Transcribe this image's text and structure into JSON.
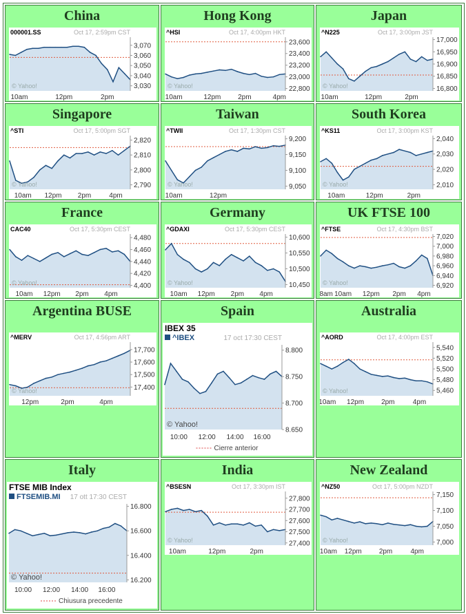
{
  "cells": [
    {
      "title": "China",
      "chart": {
        "symbol": "000001.SS",
        "stamp": "Oct 17, 2:59pm CST",
        "watermark": "© Yahoo!",
        "ylim": [
          3025,
          3078
        ],
        "yticks": [
          "3,070",
          "3,060",
          "3,050",
          "3,040",
          "3,030"
        ],
        "ytickvals": [
          3070,
          3060,
          3050,
          3040,
          3030
        ],
        "xticks": [
          "10am",
          "12pm",
          "2pm"
        ],
        "xtickpos": [
          0.08,
          0.45,
          0.81
        ],
        "prev_close": 3058,
        "series": [
          3061,
          3060,
          3063,
          3066,
          3067,
          3067,
          3068,
          3068,
          3068,
          3068,
          3068,
          3069,
          3069,
          3068,
          3063,
          3060,
          3052,
          3046,
          3034,
          3048,
          3042,
          3036
        ]
      }
    },
    {
      "title": "Hong Kong",
      "chart": {
        "symbol": "^HSI",
        "stamp": "Oct 17, 4:00pm HKT",
        "watermark": "© Yahoo!",
        "ylim": [
          22760,
          23680
        ],
        "yticks": [
          "23,600",
          "23,400",
          "23,200",
          "23,000",
          "22,800"
        ],
        "ytickvals": [
          23600,
          23400,
          23200,
          23000,
          22800
        ],
        "xticks": [
          "10am",
          "12pm",
          "2pm",
          "4pm"
        ],
        "xtickpos": [
          0.07,
          0.39,
          0.66,
          0.95
        ],
        "prev_close": 23600,
        "series": [
          23050,
          23000,
          22970,
          22990,
          23030,
          23050,
          23060,
          23080,
          23100,
          23120,
          23110,
          23130,
          23090,
          23060,
          23040,
          23060,
          23010,
          22990,
          23000,
          23040,
          23050
        ]
      }
    },
    {
      "title": "Japan",
      "chart": {
        "symbol": "^N225",
        "stamp": "Oct 17, 3:00pm JST",
        "watermark": "© Yahoo!",
        "ylim": [
          16790,
          17010
        ],
        "yticks": [
          "17,000",
          "16,950",
          "16,900",
          "16,850",
          "16,800"
        ],
        "ytickvals": [
          17000,
          16950,
          16900,
          16850,
          16800
        ],
        "xticks": [
          "10am",
          "12pm",
          "2pm"
        ],
        "xtickpos": [
          0.08,
          0.47,
          0.81
        ],
        "prev_close": 16855,
        "series": [
          16930,
          16950,
          16925,
          16900,
          16880,
          16840,
          16830,
          16850,
          16870,
          16885,
          16890,
          16900,
          16910,
          16925,
          16940,
          16950,
          16920,
          16910,
          16930,
          16915,
          16920
        ]
      }
    },
    {
      "title": "Singapore",
      "chart": {
        "symbol": "^STI",
        "stamp": "Oct 17, 5:00pm SGT",
        "watermark": "© Yahoo!",
        "ylim": [
          2787,
          2823
        ],
        "yticks": [
          "2,820",
          "2,810",
          "2,800",
          "2,790"
        ],
        "ytickvals": [
          2820,
          2810,
          2800,
          2790
        ],
        "xticks": [
          "10am",
          "12pm",
          "2pm",
          "4pm"
        ],
        "xtickpos": [
          0.11,
          0.36,
          0.62,
          0.88
        ],
        "prev_close": 2815,
        "series": [
          2806,
          2793,
          2791,
          2792,
          2795,
          2800,
          2803,
          2801,
          2806,
          2810,
          2808,
          2811,
          2811,
          2812,
          2810,
          2812,
          2811,
          2813,
          2810,
          2813,
          2816
        ]
      }
    },
    {
      "title": "Taiwan",
      "chart": {
        "symbol": "^TWII",
        "stamp": "Oct 17, 1:30pm CST",
        "watermark": "© Yahoo!",
        "ylim": [
          9040,
          9210
        ],
        "yticks": [
          "9,200",
          "9,150",
          "9,100",
          "9,050"
        ],
        "ytickvals": [
          9200,
          9150,
          9100,
          9050
        ],
        "xticks": [
          "10am",
          "12pm"
        ],
        "xtickpos": [
          0.07,
          0.44
        ],
        "prev_close": 9175,
        "series": [
          9130,
          9100,
          9070,
          9060,
          9080,
          9100,
          9110,
          9130,
          9140,
          9150,
          9160,
          9165,
          9160,
          9170,
          9168,
          9175,
          9170,
          9172,
          9178,
          9176,
          9180
        ]
      }
    },
    {
      "title": "South Korea",
      "chart": {
        "symbol": "^KS11",
        "stamp": "Oct 17, 3:00pm KST",
        "watermark": "© Yahoo!",
        "ylim": [
          2007,
          2042
        ],
        "yticks": [
          "2,040",
          "2,030",
          "2,020",
          "2,010"
        ],
        "ytickvals": [
          2040,
          2030,
          2020,
          2010
        ],
        "xticks": [
          "10am",
          "12pm",
          "2pm"
        ],
        "xtickpos": [
          0.14,
          0.48,
          0.83
        ],
        "prev_close": 2022,
        "series": [
          2025,
          2027,
          2024,
          2018,
          2013,
          2015,
          2020,
          2022,
          2024,
          2026,
          2027,
          2029,
          2030,
          2031,
          2033,
          2032,
          2031,
          2029,
          2030,
          2031,
          2032
        ]
      }
    },
    {
      "title": "France",
      "chart": {
        "symbol": "CAC40",
        "stamp": "Oct 17, 5:30pm CEST",
        "watermark": "© Yahoo!",
        "ylim": [
          4396,
          4486
        ],
        "yticks": [
          "4,480",
          "4,460",
          "4,440",
          "4,420",
          "4,400"
        ],
        "ytickvals": [
          4480,
          4460,
          4440,
          4420,
          4400
        ],
        "xticks": [
          "10am",
          "12pm",
          "2pm",
          "4pm"
        ],
        "xtickpos": [
          0.12,
          0.35,
          0.6,
          0.84
        ],
        "prev_close": 4401,
        "series": [
          4460,
          4448,
          4442,
          4450,
          4445,
          4440,
          4446,
          4452,
          4455,
          4448,
          4453,
          4458,
          4452,
          4450,
          4455,
          4460,
          4462,
          4456,
          4458,
          4452,
          4440
        ]
      }
    },
    {
      "title": "Germany",
      "chart": {
        "symbol": "^GDAXI",
        "stamp": "Oct 17, 5:30pm CEST",
        "watermark": "© Yahoo!",
        "ylim": [
          10440,
          10610
        ],
        "yticks": [
          "10,600",
          "10,550",
          "10,500",
          "10,450"
        ],
        "ytickvals": [
          10600,
          10550,
          10500,
          10450
        ],
        "xticks": [
          "10am",
          "12pm",
          "2pm",
          "4pm"
        ],
        "xtickpos": [
          0.11,
          0.34,
          0.6,
          0.84
        ],
        "prev_close": 10580,
        "series": [
          10560,
          10580,
          10545,
          10530,
          10520,
          10500,
          10490,
          10500,
          10520,
          10510,
          10530,
          10545,
          10535,
          10525,
          10540,
          10520,
          10510,
          10495,
          10500,
          10490,
          10460
        ]
      }
    },
    {
      "title": "UK FTSE 100",
      "chart": {
        "symbol": "^FTSE",
        "stamp": "Oct 17, 4:30pm BST",
        "watermark": "© Yahoo!",
        "ylim": [
          6915,
          7025
        ],
        "yticks": [
          "7,020",
          "7,000",
          "6,980",
          "6,960",
          "6,940",
          "6,920"
        ],
        "ytickvals": [
          7020,
          7000,
          6980,
          6960,
          6940,
          6920
        ],
        "xticks": [
          "8am",
          "10am",
          "12pm",
          "2pm",
          "4pm"
        ],
        "xtickpos": [
          0.05,
          0.2,
          0.45,
          0.7,
          0.92
        ],
        "prev_close": 7018,
        "series": [
          6980,
          6992,
          6985,
          6975,
          6968,
          6960,
          6955,
          6960,
          6958,
          6955,
          6957,
          6960,
          6962,
          6965,
          6958,
          6955,
          6960,
          6970,
          6982,
          6975,
          6940
        ]
      }
    },
    {
      "title": "Argentina BUSE",
      "chart": {
        "symbol": "^MERV",
        "stamp": "Oct 17, 4:56pm ART",
        "watermark": "© Yahoo!",
        "ylim": [
          17330,
          17760
        ],
        "yticks": [
          "17,700",
          "17,600",
          "17,500",
          "17,400"
        ],
        "ytickvals": [
          17700,
          17600,
          17500,
          17400
        ],
        "xticks": [
          "12pm",
          "2pm",
          "4pm"
        ],
        "xtickpos": [
          0.17,
          0.48,
          0.8
        ],
        "prev_close": 17395,
        "series": [
          17420,
          17410,
          17390,
          17400,
          17430,
          17450,
          17470,
          17480,
          17500,
          17510,
          17520,
          17535,
          17550,
          17570,
          17580,
          17600,
          17610,
          17630,
          17650,
          17670,
          17695
        ]
      }
    },
    {
      "title": "Spain",
      "chart": {
        "header": "IBEX 35",
        "symbol": "^IBEX",
        "stamp": "17 oct 17:30 CEST",
        "watermark": "© Yahoo!",
        "legend": "Cierre anterior",
        "ylim": [
          8650,
          8810
        ],
        "yticks": [
          "8.800",
          "8.750",
          "8.700",
          "8.650"
        ],
        "ytickvals": [
          8800,
          8750,
          8700,
          8650
        ],
        "xticks": [
          "10:00",
          "12:00",
          "14:00",
          "16:00"
        ],
        "xtickpos": [
          0.12,
          0.36,
          0.6,
          0.83
        ],
        "prev_close": 8690,
        "series": [
          8735,
          8775,
          8760,
          8745,
          8740,
          8728,
          8718,
          8722,
          8738,
          8755,
          8760,
          8748,
          8735,
          8738,
          8745,
          8752,
          8748,
          8745,
          8755,
          8760,
          8750
        ]
      }
    },
    {
      "title": "Australia",
      "chart": {
        "symbol": "^AORD",
        "stamp": "Oct 17, 4:00pm EST",
        "watermark": "© Yahoo!",
        "ylim": [
          5450,
          5550
        ],
        "yticks": [
          "5,540",
          "5,520",
          "5,500",
          "5,480",
          "5,460"
        ],
        "ytickvals": [
          5540,
          5520,
          5500,
          5480,
          5460
        ],
        "xticks": [
          "10am",
          "12pm",
          "2pm",
          "4pm"
        ],
        "xtickpos": [
          0.06,
          0.31,
          0.6,
          0.88
        ],
        "prev_close": 5517,
        "series": [
          5510,
          5505,
          5500,
          5505,
          5512,
          5518,
          5510,
          5500,
          5495,
          5490,
          5488,
          5486,
          5487,
          5484,
          5482,
          5483,
          5480,
          5478,
          5478,
          5476,
          5472
        ]
      }
    },
    {
      "title": "Italy",
      "chart": {
        "header": "FTSE MIB Index",
        "symbol": "FTSEMIB.MI",
        "stamp": "17 ott 17:30 CEST",
        "watermark": "© Yahoo!",
        "legend": "Chiusura precedente",
        "ylim": [
          16180,
          16820
        ],
        "yticks": [
          "16.800",
          "16.600",
          "16.400",
          "16.200"
        ],
        "ytickvals": [
          16800,
          16600,
          16400,
          16200
        ],
        "xticks": [
          "10:00",
          "12:00",
          "14:00",
          "16:00"
        ],
        "xtickpos": [
          0.12,
          0.36,
          0.6,
          0.83
        ],
        "prev_close": 16255,
        "series": [
          16580,
          16610,
          16600,
          16580,
          16560,
          16570,
          16580,
          16560,
          16565,
          16575,
          16585,
          16590,
          16585,
          16575,
          16590,
          16600,
          16620,
          16630,
          16660,
          16640,
          16600
        ]
      }
    },
    {
      "title": "India",
      "chart": {
        "symbol": "^BSESN",
        "stamp": "Oct 17, 3:30pm IST",
        "watermark": "© Yahoo!",
        "ylim": [
          27380,
          27860
        ],
        "yticks": [
          "27,800",
          "27,700",
          "27,600",
          "27,500",
          "27,400"
        ],
        "ytickvals": [
          27800,
          27700,
          27600,
          27500,
          27400
        ],
        "xticks": [
          "10am",
          "12pm",
          "2pm"
        ],
        "xtickpos": [
          0.1,
          0.43,
          0.76
        ],
        "prev_close": 27675,
        "series": [
          27680,
          27700,
          27710,
          27690,
          27700,
          27680,
          27690,
          27640,
          27560,
          27580,
          27560,
          27570,
          27570,
          27560,
          27580,
          27550,
          27560,
          27500,
          27520,
          27510,
          27520
        ]
      }
    },
    {
      "title": "New Zealand",
      "chart": {
        "symbol": "^NZ50",
        "stamp": "Oct 17, 5:00pm NZDT",
        "watermark": "© Yahoo!",
        "ylim": [
          6990,
          7160
        ],
        "yticks": [
          "7,150",
          "7,100",
          "7,050",
          "7,000"
        ],
        "ytickvals": [
          7150,
          7100,
          7050,
          7000
        ],
        "xticks": [
          "10am",
          "12pm",
          "2pm",
          "4pm"
        ],
        "xtickpos": [
          0.07,
          0.29,
          0.58,
          0.86
        ],
        "prev_close": 7140,
        "series": [
          7085,
          7080,
          7070,
          7075,
          7070,
          7065,
          7060,
          7064,
          7058,
          7060,
          7058,
          7055,
          7060,
          7056,
          7054,
          7052,
          7055,
          7050,
          7048,
          7050,
          7065
        ]
      }
    }
  ]
}
